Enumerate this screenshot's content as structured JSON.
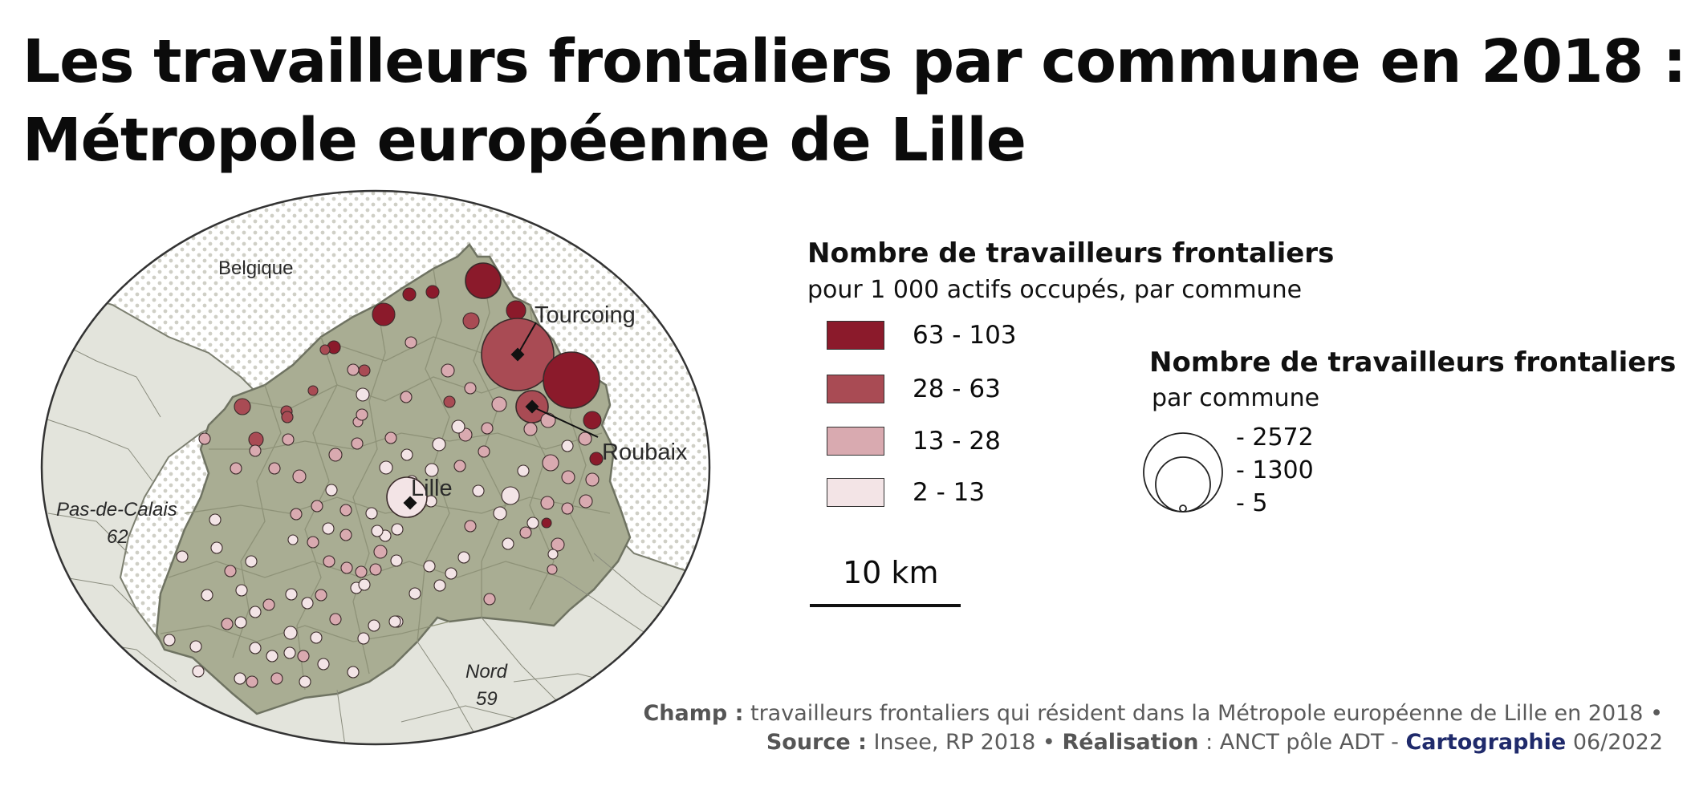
{
  "title": {
    "line1": "Les travailleurs  frontaliers par commune en 2018 :",
    "line2": "Métropole européenne de Lille"
  },
  "map": {
    "labels": {
      "belgique": "Belgique",
      "pas_de_calais": "Pas-de-Calais",
      "pas_de_calais_code": "62",
      "nord": "Nord",
      "nord_code": "59",
      "lille": "Lille",
      "tourcoing": "Tourcoing",
      "roubaix": "Roubaix"
    },
    "colors": {
      "metropole_fill": "#a9ad93",
      "metropole_border": "#8e9278",
      "outside_fill": "#e3e4dc",
      "belgium_dot": "#cfcfc6",
      "class_63_103": "#8b1a2b",
      "class_28_63": "#a94b54",
      "class_13_28": "#d9aab0",
      "class_2_13": "#f3e4e6"
    }
  },
  "legend_choropleth": {
    "title": "Nombre de travailleurs frontaliers",
    "subtitle": "pour 1 000 actifs occupés, par commune",
    "classes": [
      {
        "label": "63 - 103",
        "color": "#8b1a2b"
      },
      {
        "label": "28 - 63",
        "color": "#a94b54"
      },
      {
        "label": "13 - 28",
        "color": "#d9aab0"
      },
      {
        "label": "2 - 13",
        "color": "#f3e4e6"
      }
    ]
  },
  "legend_proportional": {
    "title": "Nombre de travailleurs frontaliers",
    "subtitle": "par commune",
    "values": [
      {
        "label": "- 2572",
        "value": 2572
      },
      {
        "label": "- 1300",
        "value": 1300
      },
      {
        "label": "- 5",
        "value": 5
      }
    ]
  },
  "scale": {
    "label": "10 km"
  },
  "footer": {
    "champ_label": "Champ :",
    "champ_text": "travailleurs frontaliers qui résident dans la Métropole européenne de Lille en 2018 •",
    "source_label": "Source :",
    "source_text": "Insee, RP 2018 •",
    "realisation_label": "Réalisation",
    "realisation_text": ": ANCT pôle ADT -",
    "cartographie_label": "Cartographie",
    "date": "06/2022"
  }
}
